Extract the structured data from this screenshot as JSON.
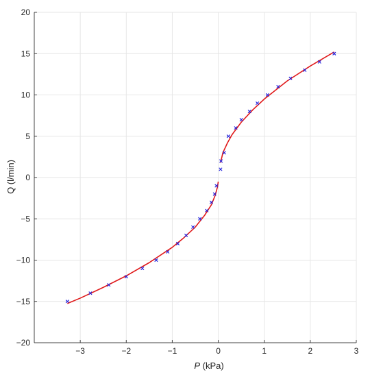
{
  "chart_data": {
    "type": "scatter",
    "title": "",
    "xlabel_var": "P",
    "xlabel_unit": " (kPa)",
    "ylabel": "Q (l/min)",
    "xlim": [
      -4,
      3
    ],
    "ylim": [
      -20,
      20
    ],
    "xticks": [
      -3,
      -2,
      -1,
      0,
      1,
      2,
      3
    ],
    "yticks": [
      -20,
      -15,
      -10,
      -5,
      0,
      5,
      10,
      15,
      20
    ],
    "grid": true,
    "legend": "none",
    "series": [
      {
        "kind": "points",
        "marker": "x",
        "color": "#1f1fdc",
        "points": [
          [
            -3.28,
            -15
          ],
          [
            -2.78,
            -14
          ],
          [
            -2.38,
            -13
          ],
          [
            -2.0,
            -12
          ],
          [
            -1.65,
            -11
          ],
          [
            -1.35,
            -10
          ],
          [
            -1.1,
            -9
          ],
          [
            -0.88,
            -8
          ],
          [
            -0.7,
            -7
          ],
          [
            -0.55,
            -6
          ],
          [
            -0.4,
            -5
          ],
          [
            -0.25,
            -4
          ],
          [
            -0.15,
            -3
          ],
          [
            -0.08,
            -2
          ],
          [
            -0.04,
            -1
          ],
          [
            0.05,
            1
          ],
          [
            0.06,
            2
          ],
          [
            0.13,
            3
          ],
          [
            0.22,
            5
          ],
          [
            0.38,
            6
          ],
          [
            0.5,
            7
          ],
          [
            0.68,
            8
          ],
          [
            0.85,
            9
          ],
          [
            1.07,
            10
          ],
          [
            1.3,
            11
          ],
          [
            1.57,
            12
          ],
          [
            1.88,
            13
          ],
          [
            2.2,
            14
          ],
          [
            2.52,
            15
          ]
        ]
      },
      {
        "kind": "fit-curve",
        "color": "#e0191a",
        "segments": [
          [
            [
              -3.28,
              -15.25
            ],
            [
              -3.0,
              -14.6
            ],
            [
              -2.5,
              -13.3
            ],
            [
              -2.0,
              -11.9
            ],
            [
              -1.5,
              -10.3
            ],
            [
              -1.0,
              -8.45
            ],
            [
              -0.75,
              -7.3
            ],
            [
              -0.5,
              -6.0
            ],
            [
              -0.3,
              -4.6
            ],
            [
              -0.15,
              -3.3
            ],
            [
              -0.07,
              -2.2
            ],
            [
              -0.02,
              -1.2
            ],
            [
              0.0,
              -0.5
            ]
          ],
          [
            [
              0.05,
              1.8
            ],
            [
              0.1,
              3.0
            ],
            [
              0.2,
              4.2
            ],
            [
              0.3,
              5.2
            ],
            [
              0.5,
              6.7
            ],
            [
              0.75,
              8.2
            ],
            [
              1.0,
              9.5
            ],
            [
              1.5,
              11.7
            ],
            [
              2.0,
              13.5
            ],
            [
              2.52,
              15.2
            ]
          ]
        ]
      }
    ]
  }
}
